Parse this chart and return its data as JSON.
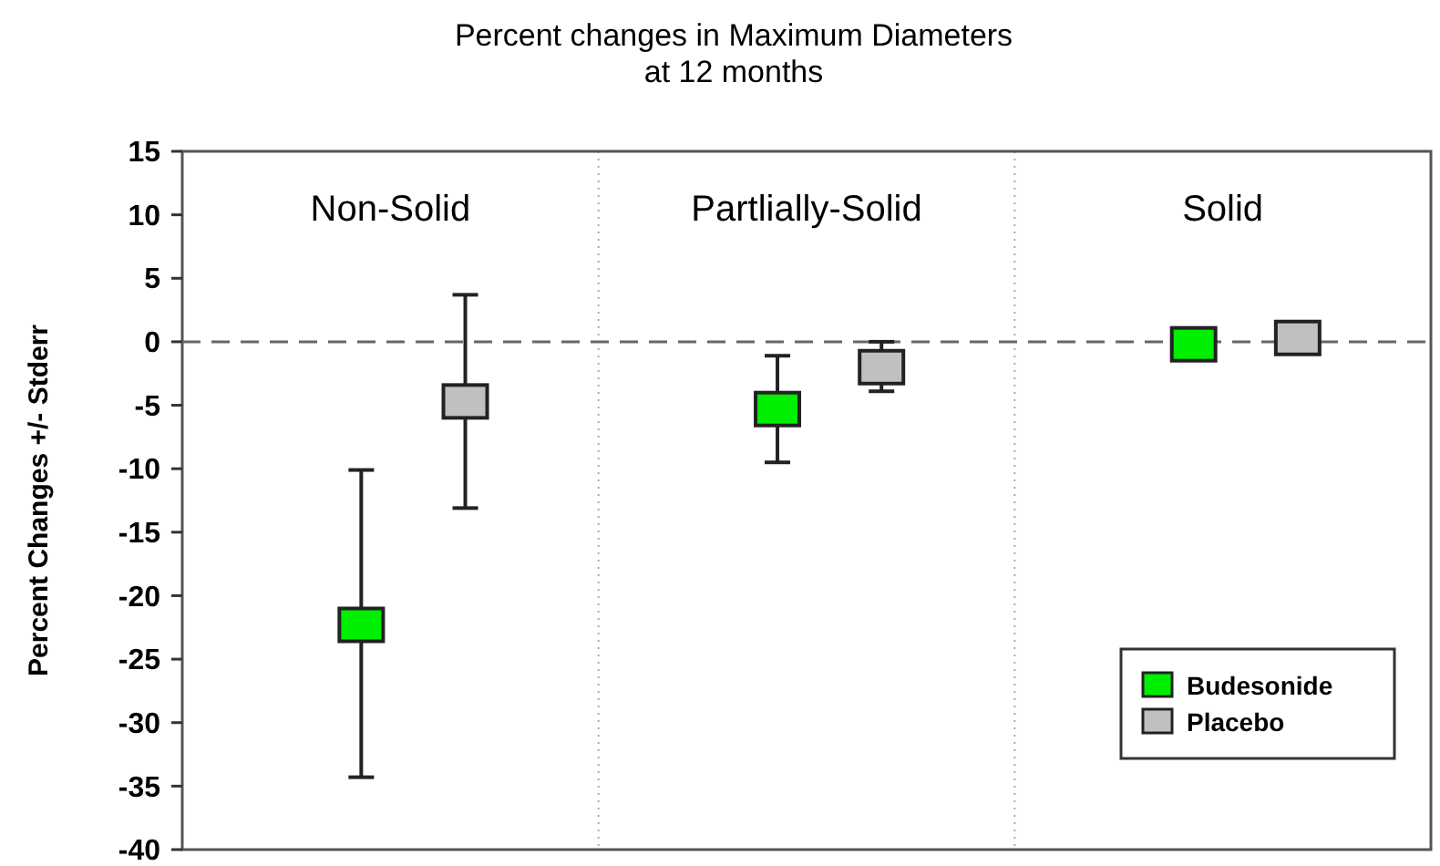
{
  "chart_data": {
    "type": "scatter",
    "title": "Percent changes in Maximum Diameters\nat 12 months",
    "ylabel": "Percent Changes  +/- Stderr",
    "categories": [
      "Non-Solid",
      "Partlially-Solid",
      "Solid"
    ],
    "series": [
      {
        "name": "Budesonide",
        "color": "#00ee00",
        "values": [
          -22.3,
          -5.3,
          -0.2
        ],
        "errors": [
          [
            -34.3,
            -10.1
          ],
          [
            -9.5,
            -1.1
          ],
          null
        ]
      },
      {
        "name": "Placebo",
        "color": "#c0c0c0",
        "values": [
          -4.7,
          -2.0,
          0.3
        ],
        "errors": [
          [
            -13.1,
            3.7
          ],
          [
            -3.9,
            0.0
          ],
          null
        ]
      }
    ],
    "ylim": [
      -40,
      15
    ],
    "yticks": [
      -40,
      -35,
      -30,
      -25,
      -20,
      -15,
      -10,
      -5,
      0,
      5,
      10,
      15
    ],
    "ref_lines": [
      {
        "axis": "y",
        "value": 0,
        "line_style": "dashed",
        "color": "#666666"
      }
    ],
    "marker": "square",
    "legend": "bottom right",
    "grid": false
  }
}
